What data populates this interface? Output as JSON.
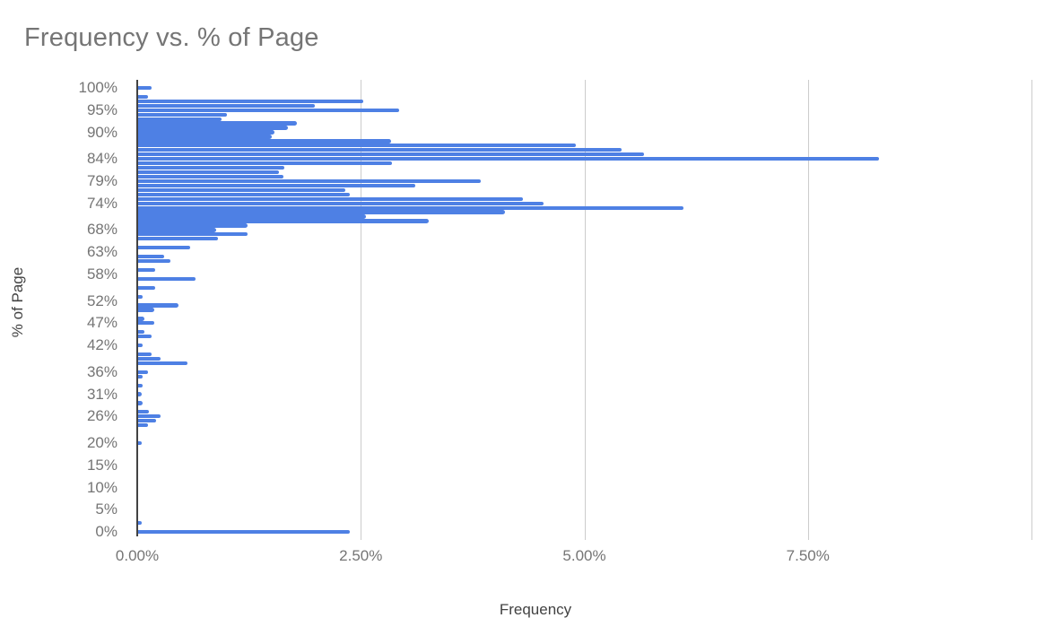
{
  "chart_data": {
    "type": "bar",
    "orientation": "horizontal",
    "title": "Frequency vs. % of Page",
    "xlabel": "Frequency",
    "ylabel": "% of Page",
    "xlim": [
      0,
      10
    ],
    "grid": true,
    "legend": "none",
    "x_ticks": [
      {
        "label": "0.00%",
        "value": 0
      },
      {
        "label": "2.50%",
        "value": 2.5
      },
      {
        "label": "5.00%",
        "value": 5
      },
      {
        "label": "7.50%",
        "value": 7.5
      }
    ],
    "labeled_y_categories": [
      100,
      95,
      90,
      84,
      79,
      74,
      68,
      63,
      58,
      52,
      47,
      42,
      36,
      31,
      26,
      20,
      15,
      10,
      5,
      0
    ],
    "y_tick_label_suffix": "%",
    "categories": [
      100,
      99,
      98,
      97,
      96,
      95,
      94,
      93,
      92,
      91,
      90,
      89,
      88,
      87,
      86,
      85,
      84,
      83,
      82,
      81,
      80,
      79,
      78,
      77,
      76,
      75,
      74,
      73,
      72,
      71,
      70,
      69,
      68,
      67,
      66,
      65,
      64,
      63,
      62,
      61,
      60,
      59,
      58,
      57,
      56,
      55,
      54,
      53,
      52,
      51,
      50,
      49,
      48,
      47,
      46,
      45,
      44,
      43,
      42,
      41,
      40,
      39,
      38,
      37,
      36,
      35,
      34,
      33,
      32,
      31,
      30,
      29,
      28,
      27,
      26,
      25,
      24,
      23,
      22,
      21,
      20,
      19,
      18,
      17,
      16,
      15,
      14,
      13,
      12,
      11,
      10,
      9,
      8,
      7,
      6,
      5,
      4,
      3,
      2,
      1,
      0
    ],
    "values": [
      0.15,
      0,
      0.11,
      2.52,
      1.98,
      2.92,
      0.99,
      0.93,
      1.78,
      1.68,
      1.52,
      1.49,
      2.83,
      4.89,
      5.41,
      5.66,
      8.28,
      2.84,
      1.63,
      1.57,
      1.62,
      3.83,
      3.1,
      2.32,
      2.37,
      4.3,
      4.53,
      6.1,
      4.1,
      2.55,
      3.25,
      1.22,
      0.87,
      1.22,
      0.89,
      0,
      0.58,
      0,
      0.29,
      0.36,
      0,
      0.19,
      0,
      0.64,
      0,
      0.19,
      0,
      0.05,
      0,
      0.45,
      0.18,
      0,
      0.07,
      0.18,
      0,
      0.07,
      0.15,
      0,
      0.05,
      0,
      0.15,
      0.25,
      0.55,
      0,
      0.11,
      0.05,
      0,
      0.05,
      0,
      0.04,
      0,
      0.05,
      0,
      0.12,
      0.25,
      0.2,
      0.11,
      0,
      0,
      0,
      0.04,
      0,
      0,
      0,
      0,
      0,
      0,
      0,
      0,
      0,
      0,
      0,
      0,
      0,
      0,
      0,
      0,
      0,
      0.04,
      0,
      2.37
    ],
    "series_name": "Frequency",
    "colors": {
      "bar": "#4e80e4",
      "gridline": "#cccccc",
      "axis_line": "#424242",
      "title_text": "#757575",
      "tick_text": "#757575",
      "axis_title_text": "#424242",
      "background": "#ffffff"
    }
  }
}
